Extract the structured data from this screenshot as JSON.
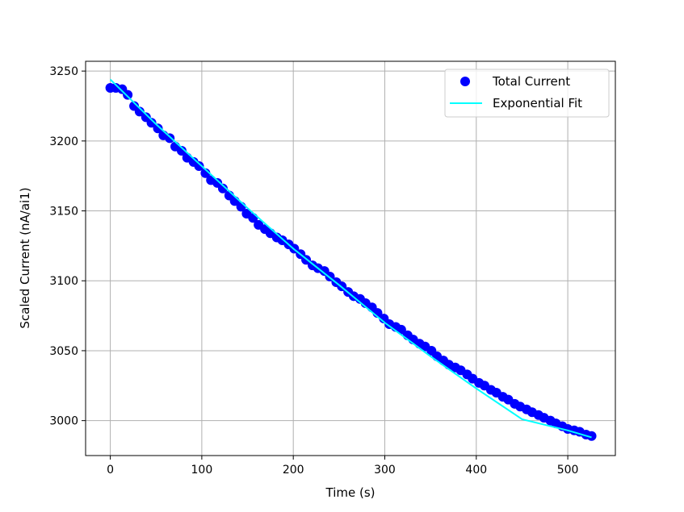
{
  "chart_data": {
    "type": "scatter",
    "title": "",
    "xlabel": "Time (s)",
    "ylabel": "Scaled Current (nA/ai1)",
    "xlim": [
      -27,
      552
    ],
    "ylim": [
      2975,
      3257
    ],
    "xticks": [
      0,
      100,
      200,
      300,
      400,
      500
    ],
    "yticks": [
      3000,
      3050,
      3100,
      3150,
      3200,
      3250
    ],
    "grid": true,
    "legend_position": "top-right",
    "series": [
      {
        "name": "Total Current",
        "kind": "scatter",
        "color": "#0000ff",
        "x": [
          0,
          6,
          13,
          19,
          26,
          32,
          39,
          45,
          52,
          58,
          65,
          71,
          78,
          84,
          91,
          97,
          104,
          110,
          117,
          123,
          130,
          136,
          143,
          149,
          156,
          162,
          169,
          175,
          182,
          188,
          195,
          201,
          208,
          214,
          221,
          227,
          234,
          240,
          247,
          253,
          260,
          266,
          273,
          279,
          286,
          292,
          299,
          305,
          312,
          318,
          325,
          331,
          338,
          344,
          351,
          357,
          364,
          370,
          377,
          383,
          390,
          396,
          403,
          409,
          416,
          422,
          429,
          435,
          442,
          448,
          455,
          461,
          468,
          474,
          481,
          487,
          494,
          500,
          507,
          513,
          520,
          526
        ],
        "y": [
          3238,
          3238,
          3237,
          3233,
          3225,
          3221,
          3217,
          3213,
          3209,
          3204,
          3202,
          3196,
          3193,
          3188,
          3185,
          3182,
          3177,
          3172,
          3170,
          3166,
          3161,
          3157,
          3153,
          3148,
          3145,
          3140,
          3137,
          3134,
          3131,
          3129,
          3126,
          3123,
          3119,
          3115,
          3111,
          3109,
          3107,
          3103,
          3099,
          3096,
          3092,
          3089,
          3087,
          3084,
          3081,
          3077,
          3073,
          3069,
          3067,
          3065,
          3061,
          3058,
          3055,
          3053,
          3050,
          3046,
          3043,
          3040,
          3038,
          3036,
          3033,
          3030,
          3027,
          3025,
          3022,
          3020,
          3017,
          3015,
          3012,
          3010,
          3008,
          3006,
          3004,
          3002,
          3000,
          2998,
          2996,
          2994,
          2993,
          2992,
          2990,
          2989
        ]
      },
      {
        "name": "Exponential Fit",
        "kind": "line",
        "color": "#00ffff",
        "x": [
          0,
          50,
          100,
          150,
          200,
          250,
          300,
          350,
          400,
          450,
          500,
          526
        ],
        "y": [
          3244,
          3212,
          3182,
          3152,
          3123,
          3097,
          3070,
          3046,
          3023,
          3001,
          2993,
          2988
        ]
      }
    ]
  }
}
